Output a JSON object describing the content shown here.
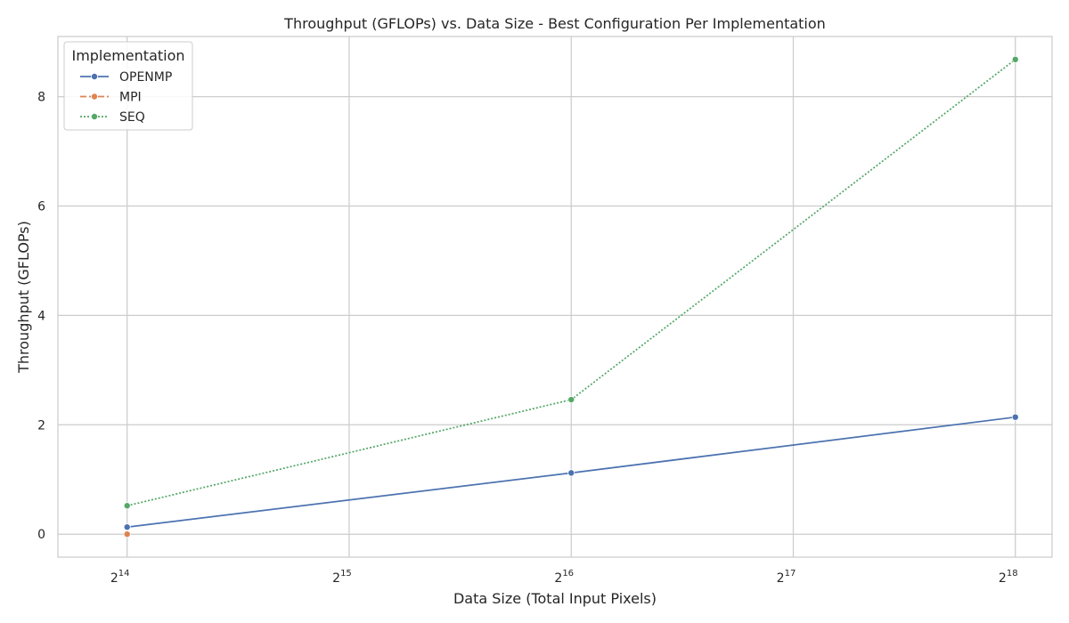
{
  "chart_data": {
    "type": "line",
    "title": "Throughput (GFLOPs) vs. Data Size - Best Configuration Per Implementation",
    "xlabel": "Data Size (Total Input Pixels)",
    "ylabel": "Throughput (GFLOPs)",
    "x_scale": "log2",
    "x_ticks": [
      {
        "value": 16384,
        "base": "2",
        "exp": "14"
      },
      {
        "value": 32768,
        "base": "2",
        "exp": "15"
      },
      {
        "value": 65536,
        "base": "2",
        "exp": "16"
      },
      {
        "value": 131072,
        "base": "2",
        "exp": "17"
      },
      {
        "value": 262144,
        "base": "2",
        "exp": "18"
      }
    ],
    "y_ticks": [
      0,
      2,
      4,
      6,
      8
    ],
    "xlim": [
      13200,
      294000
    ],
    "ylim": [
      -0.42,
      9.1
    ],
    "grid": true,
    "legend": {
      "title": "Implementation",
      "position": "top-left"
    },
    "series": [
      {
        "name": "OPENMP",
        "color": "#4c72b0",
        "dash": "solid",
        "x": [
          16384,
          65536,
          262144
        ],
        "y": [
          0.13,
          1.12,
          2.14
        ]
      },
      {
        "name": "MPI",
        "color": "#dd8452",
        "dash": "dashed",
        "x": [
          16384
        ],
        "y": [
          0.0
        ]
      },
      {
        "name": "SEQ",
        "color": "#55a868",
        "dash": "dotted",
        "x": [
          16384,
          65536,
          262144
        ],
        "y": [
          0.52,
          2.46,
          8.68
        ]
      }
    ]
  }
}
